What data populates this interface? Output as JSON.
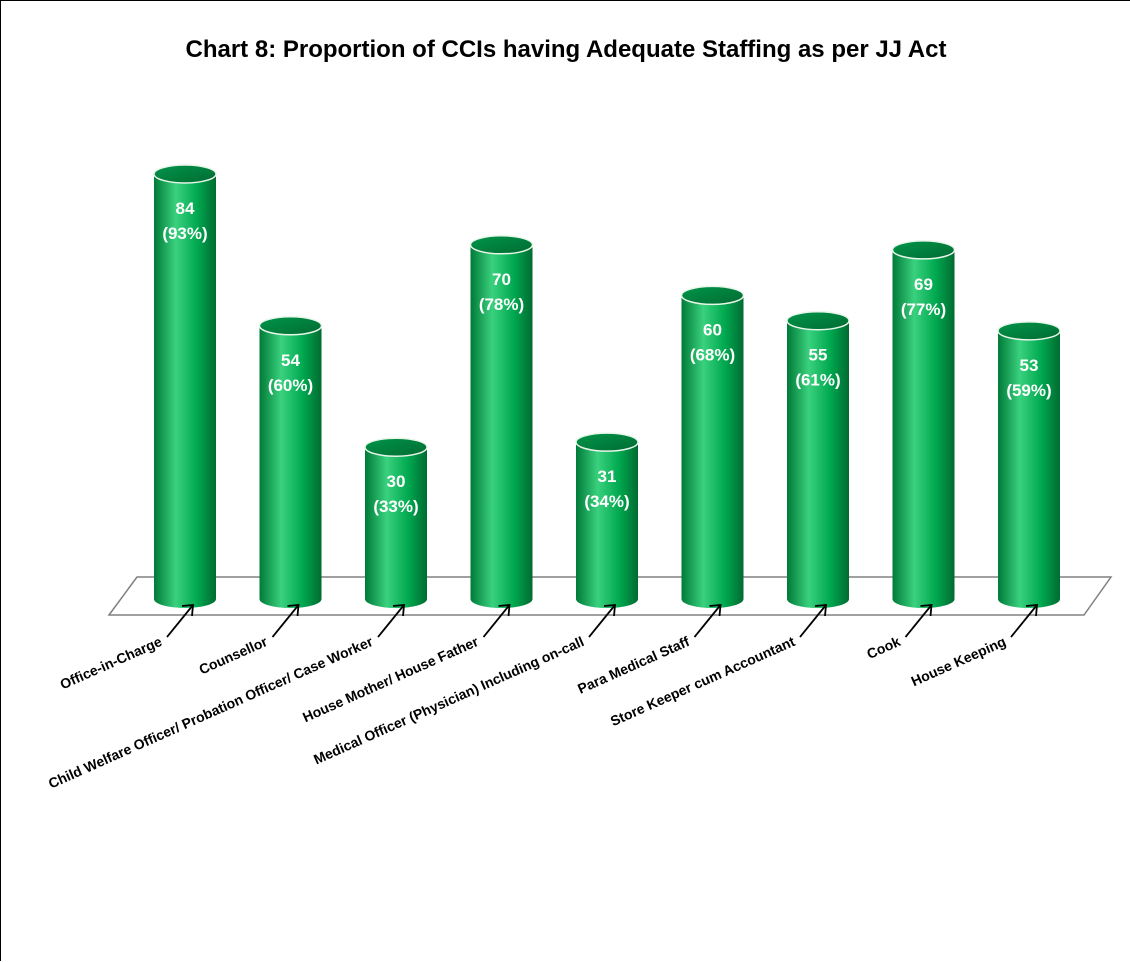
{
  "chart_data": {
    "type": "bar",
    "style": "3d-cylinder",
    "title": "Chart 8: Proportion of CCIs having Adequate Staffing as per JJ Act",
    "xlabel": "",
    "ylabel": "",
    "categories": [
      "Office-in-Charge",
      "Counsellor",
      "Child Welfare Officer/ Probation Officer/ Case Worker",
      "House Mother/ House Father",
      "Medical Officer (Physician) Including on-call",
      "Para Medical Staff",
      "Store Keeper cum Accountant",
      "Cook",
      "House Keeping"
    ],
    "series": [
      {
        "values": [
          84,
          54,
          30,
          70,
          31,
          60,
          55,
          69,
          53
        ],
        "percent_labels": [
          "(93%)",
          "(60%)",
          "(33%)",
          "(78%)",
          "(34%)",
          "(68%)",
          "(61%)",
          "(77%)",
          "(59%)"
        ]
      }
    ],
    "ylim": [
      0,
      90
    ],
    "grid": false,
    "legend": "none",
    "colors": {
      "bar": "#00a84f",
      "bar_dark": "#007a38",
      "bar_light": "#3ad17e",
      "top": "#00954a",
      "floor_stroke": "#808080"
    }
  }
}
